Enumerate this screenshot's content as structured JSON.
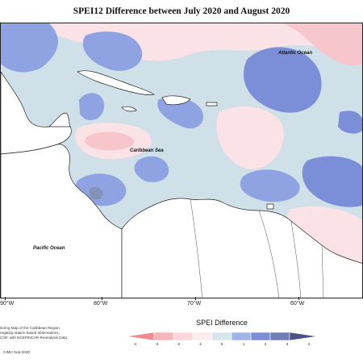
{
  "title": "SPEI12 Difference between July 2020 and August 2020",
  "ocean_labels": {
    "atlantic": "Atlantic Ocean",
    "caribbean": "Caribbean Sea",
    "pacific": "Pacific Ocean"
  },
  "longitude_labels": [
    "90°W",
    "80°W",
    "70°W",
    "60°W"
  ],
  "credits": {
    "line1": "itoring Map of the Caribbean Region.",
    "line2": "regating station based observations,",
    "line3": "COF, with NCEP/NCAR Reanalysis Data",
    "copyright": "CIMH Sep-2020"
  },
  "legend": {
    "title": "SPEI Difference",
    "ticks": [
      "-4",
      "-3",
      "-2",
      "-1",
      "0",
      "1",
      "2",
      "3",
      "4"
    ],
    "colors": [
      "#f08a8e",
      "#f7b6bb",
      "#fbd6da",
      "#fcebed",
      "#d5e5ec",
      "#9fb5e6",
      "#7b8fd9",
      "#6d7fb5",
      "#4b5189"
    ]
  },
  "map_colors": {
    "land": "#ffffff",
    "base": "#cfe0e8",
    "pink_light": "#fbe2e6",
    "pink_mid": "#f7c6cd",
    "blue_mid": "#8fa3e2",
    "blue_dark": "#7b8fd9",
    "steel": "#8393b8"
  }
}
